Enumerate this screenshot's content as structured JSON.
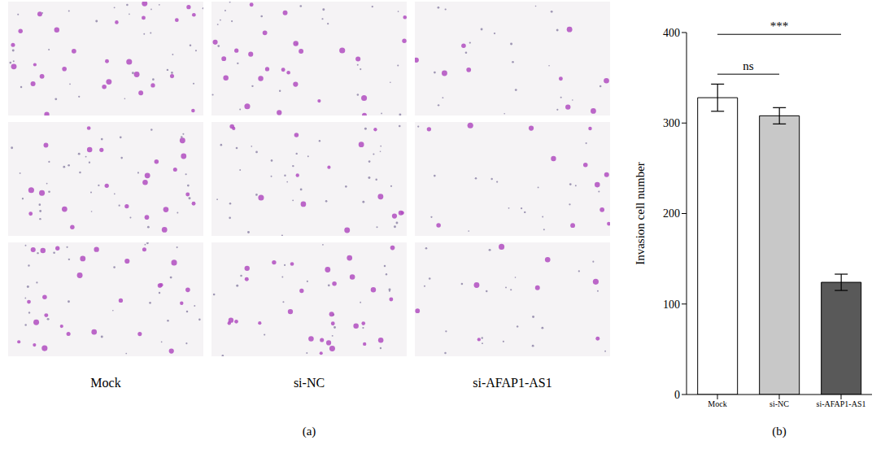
{
  "images": {
    "label": "(a)",
    "columns": [
      "Mock",
      "si-NC",
      "si-AFAP1-AS1"
    ],
    "rows": 3
  },
  "chart_data": {
    "type": "bar",
    "label": "(b)",
    "categories": [
      "Mock",
      "si-NC",
      "si-AFAP1-AS1"
    ],
    "values": [
      328,
      308,
      124
    ],
    "errors": [
      15,
      9,
      9
    ],
    "colors": [
      "#ffffff",
      "#c8c8c8",
      "#595959"
    ],
    "ylabel": "Invasion cell number",
    "ylim": [
      0,
      400
    ],
    "yticks": [
      0,
      100,
      200,
      300,
      400
    ],
    "annotations": [
      {
        "text": "ns",
        "from": "Mock",
        "to": "si-NC"
      },
      {
        "text": "***",
        "from": "Mock",
        "to": "si-AFAP1-AS1"
      }
    ]
  }
}
